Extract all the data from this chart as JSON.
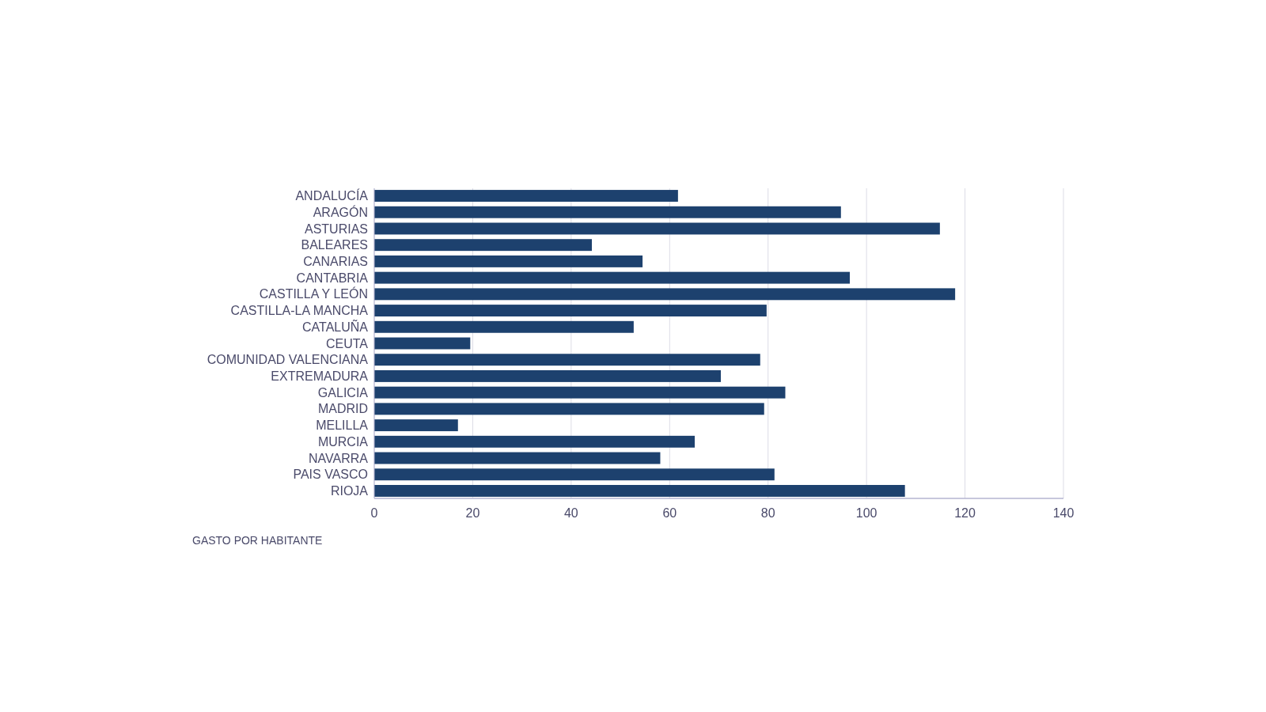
{
  "chart_data": {
    "type": "bar",
    "orientation": "horizontal",
    "xlabel": "GASTO POR HABITANTE",
    "categories": [
      "ANDALUCÍA",
      "ARAGÓN",
      "ASTURIAS",
      "BALEARES",
      "CANARIAS",
      "CANTABRIA",
      "CASTILLA Y LEÓN",
      "CASTILLA-LA MANCHA",
      "CATALUÑA",
      "CEUTA",
      "COMUNIDAD VALENCIANA",
      "EXTREMADURA",
      "GALICIA",
      "MADRID",
      "MELILLA",
      "MURCIA",
      "NAVARRA",
      "PAIS VASCO",
      "RIOJA"
    ],
    "values": [
      61.7,
      94.8,
      114.9,
      44.2,
      54.5,
      96.6,
      118.0,
      79.7,
      52.7,
      19.5,
      78.4,
      70.4,
      83.5,
      79.2,
      17.0,
      65.1,
      58.1,
      81.3,
      107.8
    ],
    "color": "#1d416e",
    "xlim": [
      0,
      140
    ],
    "xticks": [
      0,
      20,
      40,
      60,
      80,
      100,
      120,
      140
    ],
    "grid": "x"
  }
}
